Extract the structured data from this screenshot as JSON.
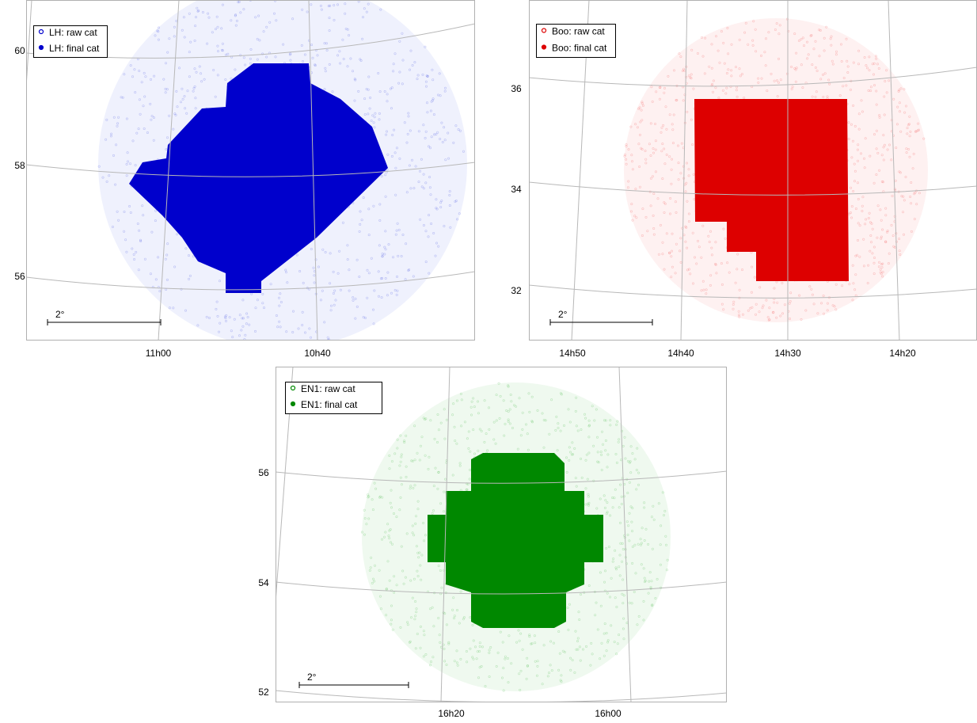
{
  "panels": [
    {
      "legend": [
        "LH: raw cat",
        "LH: final cat"
      ],
      "yticks": [
        "60",
        "58",
        "56"
      ],
      "xticks": [
        "11h00",
        "10h40"
      ],
      "scale_label": "2°"
    },
    {
      "legend": [
        "Boo: raw cat",
        "Boo: final cat"
      ],
      "yticks": [
        "36",
        "34",
        "32"
      ],
      "xticks": [
        "14h50",
        "14h40",
        "14h30",
        "14h20"
      ],
      "scale_label": "2°"
    },
    {
      "legend": [
        "EN1: raw cat",
        "EN1: final cat"
      ],
      "yticks": [
        "56",
        "54",
        "52"
      ],
      "xticks": [
        "16h20",
        "16h00"
      ],
      "scale_label": "2°"
    }
  ]
}
